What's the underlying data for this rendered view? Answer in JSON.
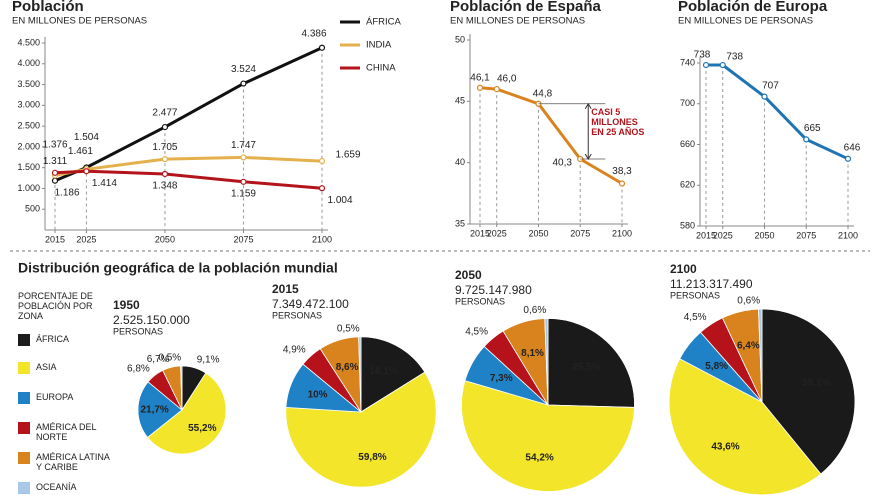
{
  "chart_data": [
    {
      "type": "line",
      "title": "Población",
      "subtitle": "EN MILLONES DE PERSONAS",
      "x": [
        2015,
        2025,
        2050,
        2075,
        2100
      ],
      "xlim": [
        2015,
        2100
      ],
      "xticks": [
        2015,
        2025,
        2050,
        2075,
        2100
      ],
      "ylim": [
        0,
        4500
      ],
      "yticks": [
        500,
        {
          "value": 1000,
          "label": "1.000"
        },
        {
          "value": 1500,
          "label": "1.500"
        },
        {
          "value": 2000,
          "label": "2.000"
        },
        {
          "value": 2500,
          "label": "2.500"
        },
        {
          "value": 3000,
          "label": "3.000"
        },
        {
          "value": 3500,
          "label": "3.500"
        },
        {
          "value": 4000,
          "label": "4.000"
        },
        {
          "value": 4500,
          "label": "4.500"
        }
      ],
      "series": [
        {
          "name": "ÁFRICA",
          "color": "#111111",
          "values": [
            1186,
            1504,
            2477,
            3524,
            4386
          ],
          "value_labels": [
            "1.186",
            "1.504",
            "2.477",
            "3.524",
            "4.386"
          ]
        },
        {
          "name": "INDIA",
          "color": "#e3b04b",
          "values": [
            1311,
            1461,
            1705,
            1747,
            1659
          ],
          "value_labels": [
            "1.311",
            "1.461",
            "1.705",
            "1.747",
            "1.659"
          ]
        },
        {
          "name": "CHINA",
          "color": "#b3131b",
          "values": [
            1376,
            1414,
            1348,
            1159,
            1004
          ],
          "value_labels": [
            "1.376",
            "1.414",
            "1.348",
            "1.159",
            "1.004"
          ]
        }
      ]
    },
    {
      "type": "line",
      "title": "Población de España",
      "subtitle": "EN MILLONES DE PERSONAS",
      "x": [
        2015,
        2025,
        2050,
        2075,
        2100
      ],
      "xlim": [
        2015,
        2100
      ],
      "xticks": [
        2015,
        2025,
        2050,
        2075,
        2100
      ],
      "ylim": [
        35,
        50
      ],
      "yticks": [
        35,
        40,
        45,
        50
      ],
      "series": [
        {
          "color": "#d9831f",
          "values": [
            46.1,
            46.0,
            44.8,
            40.3,
            38.3
          ],
          "value_labels": [
            "46,1",
            "46,0",
            "44,8",
            "40,3",
            "38,3"
          ]
        }
      ],
      "annotation": "CASI 5 MILLONES EN 25 AÑOS"
    },
    {
      "type": "line",
      "title": "Población de Europa",
      "subtitle": "EN MILLONES DE PERSONAS",
      "x": [
        2015,
        2025,
        2050,
        2075,
        2100
      ],
      "xlim": [
        2015,
        2100
      ],
      "xticks": [
        2015,
        2025,
        2050,
        2075,
        2100
      ],
      "ylim": [
        580,
        740
      ],
      "yticks": [
        580,
        620,
        660,
        700,
        740
      ],
      "series": [
        {
          "color": "#1f74b4",
          "values": [
            738,
            738,
            707,
            665,
            646
          ]
        }
      ]
    },
    {
      "type": "pie",
      "title": "Distribución geográfica de la población mundial",
      "legend_title": "PORCENTAJE DE POBLACIÓN POR ZONA",
      "categories": [
        "ÁFRICA",
        "ASIA",
        "EUROPA",
        "AMÉRICA DEL NORTE",
        "AMÉRICA LATINA Y CARIBE",
        "OCEANÍA"
      ],
      "colors": [
        "#1a1a1a",
        "#f3e52a",
        "#1f82c6",
        "#b5121b",
        "#d9831f",
        "#a9c8e6"
      ],
      "unit": "PERSONAS",
      "pies": [
        {
          "label": "1950",
          "total": 2525150000,
          "total_label": "2.525.150.000",
          "values": [
            9.1,
            55.2,
            21.7,
            6.8,
            6.7,
            0.5
          ],
          "value_labels": [
            "9,1%",
            "55,2%",
            "21,7%",
            "6,8%",
            "6,7%",
            "0,5%"
          ]
        },
        {
          "label": "2015",
          "total": 7349472100,
          "total_label": "7.349.472.100",
          "values": [
            16.1,
            59.8,
            10,
            4.9,
            8.6,
            0.5
          ],
          "value_labels": [
            "16,1%",
            "59,8%",
            "10%",
            "4,9%",
            "8,6%",
            "0,5%"
          ]
        },
        {
          "label": "2050",
          "total": 9725147980,
          "total_label": "9.725.147.980",
          "values": [
            25.5,
            54.2,
            7.3,
            4.5,
            8.1,
            0.6
          ],
          "value_labels": [
            "25,5%",
            "54,2%",
            "7,3%",
            "4,5%",
            "8,1%",
            "0,6%"
          ]
        },
        {
          "label": "2100",
          "total": 11213317490,
          "total_label": "11.213.317.490",
          "values": [
            39.1,
            43.6,
            5.8,
            4.5,
            6.4,
            0.6
          ],
          "value_labels": [
            "39,1%",
            "43,6%",
            "5,8%",
            "4,5%",
            "6,4%",
            "0,6%"
          ]
        }
      ]
    }
  ]
}
